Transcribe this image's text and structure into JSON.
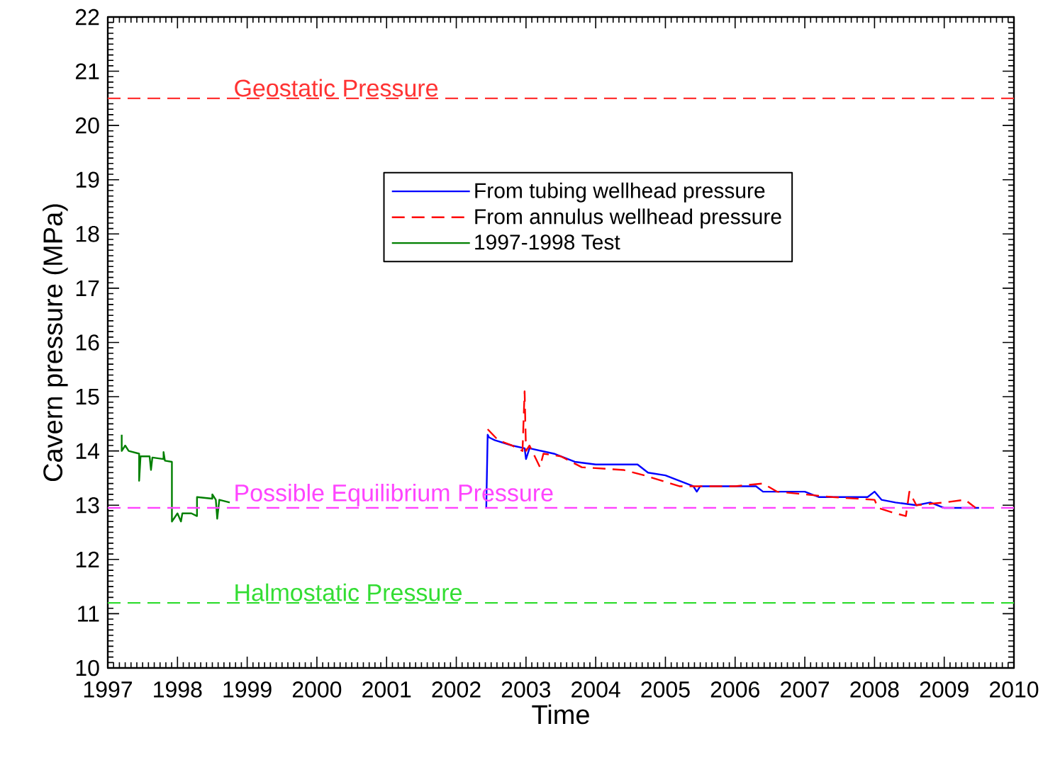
{
  "chart_data": {
    "type": "line",
    "xlabel": "Time",
    "ylabel": "Cavern pressure (MPa)",
    "xlim": [
      1997,
      2010
    ],
    "ylim": [
      10,
      22
    ],
    "xticks": [
      1997,
      1998,
      1999,
      2000,
      2001,
      2002,
      2003,
      2004,
      2005,
      2006,
      2007,
      2008,
      2009,
      2010
    ],
    "yticks": [
      10,
      11,
      12,
      13,
      14,
      15,
      16,
      17,
      18,
      19,
      20,
      21,
      22
    ],
    "grid": false,
    "legend": "top",
    "marker": "none",
    "series": [
      {
        "name": "From tubing wellhead pressure",
        "color": "#0000ff",
        "line_style": "solid",
        "x": [
          2002.43,
          2002.45,
          2002.47,
          2002.55,
          2002.8,
          2002.98,
          2003.0,
          2003.05,
          2003.4,
          2003.7,
          2004.0,
          2004.6,
          2004.75,
          2005.0,
          2005.4,
          2005.45,
          2005.5,
          2006.3,
          2006.4,
          2007.0,
          2007.2,
          2007.9,
          2008.0,
          2008.1,
          2008.3,
          2008.6,
          2008.8,
          2009.0,
          2009.5
        ],
        "values": [
          12.95,
          14.3,
          14.25,
          14.2,
          14.1,
          14.05,
          13.85,
          14.05,
          13.95,
          13.8,
          13.75,
          13.75,
          13.6,
          13.55,
          13.35,
          13.25,
          13.35,
          13.35,
          13.25,
          13.25,
          13.15,
          13.15,
          13.25,
          13.1,
          13.05,
          13.0,
          13.05,
          12.95,
          12.95
        ]
      },
      {
        "name": "From annulus wellhead pressure",
        "color": "#ff0000",
        "line_style": "dashed",
        "x": [
          2002.45,
          2002.6,
          2002.8,
          2002.95,
          2002.98,
          2003.0,
          2003.05,
          2003.2,
          2003.25,
          2003.5,
          2003.8,
          2004.4,
          2004.7,
          2005.2,
          2006.0,
          2006.4,
          2006.6,
          2007.0,
          2007.4,
          2008.0,
          2008.05,
          2008.3,
          2008.45,
          2008.5,
          2008.6,
          2009.0,
          2009.3,
          2009.45
        ],
        "values": [
          14.4,
          14.2,
          14.1,
          14.0,
          15.1,
          14.0,
          14.1,
          13.7,
          13.95,
          13.9,
          13.7,
          13.65,
          13.55,
          13.35,
          13.35,
          13.4,
          13.25,
          13.2,
          13.15,
          13.1,
          12.95,
          12.85,
          12.8,
          13.25,
          13.0,
          13.05,
          13.1,
          12.95
        ]
      },
      {
        "name": "1997-1998 Test",
        "color": "#007f00",
        "line_style": "solid",
        "x": [
          1997.2,
          1997.2,
          1997.25,
          1997.3,
          1997.45,
          1997.45,
          1997.47,
          1997.6,
          1997.62,
          1997.64,
          1997.8,
          1997.8,
          1997.82,
          1997.92,
          1997.92,
          1998.0,
          1998.05,
          1998.07,
          1998.2,
          1998.28,
          1998.28,
          1998.5,
          1998.5,
          1998.55,
          1998.57,
          1998.6,
          1998.75
        ],
        "values": [
          14.3,
          14.0,
          14.1,
          14.0,
          13.95,
          13.45,
          13.9,
          13.9,
          13.65,
          13.88,
          13.85,
          13.98,
          13.82,
          13.8,
          12.7,
          12.85,
          12.7,
          12.85,
          12.85,
          12.8,
          13.15,
          13.12,
          13.2,
          13.1,
          12.75,
          13.1,
          13.05
        ]
      }
    ],
    "ref_lines": [
      {
        "axis": "y",
        "value": 20.5,
        "label": "Geostatic Pressure",
        "color": "#ff3333",
        "line_style": "dashed"
      },
      {
        "axis": "y",
        "value": 12.95,
        "label": "Possible Equilibrium Pressure",
        "color": "#ff44ff",
        "line_style": "dashed"
      },
      {
        "axis": "y",
        "value": 11.2,
        "label": "Halmostatic Pressure",
        "color": "#33dd33",
        "line_style": "dashed"
      }
    ]
  }
}
